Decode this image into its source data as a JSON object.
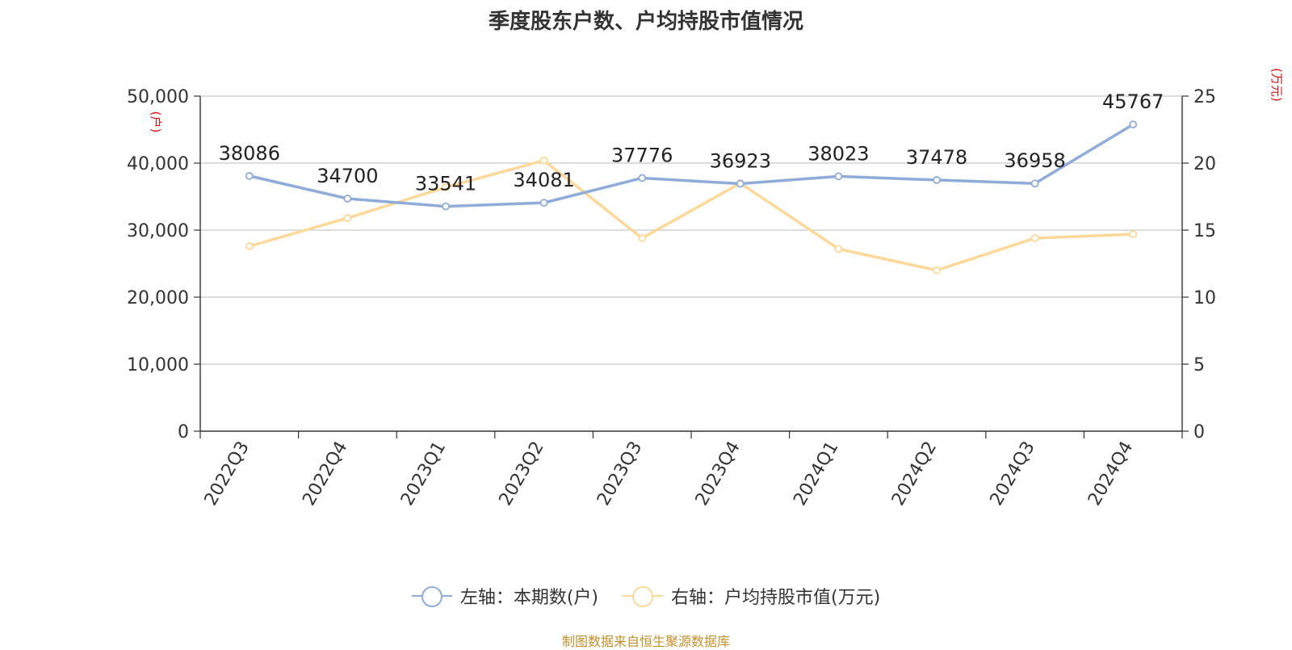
{
  "colors": {
    "series1": "#8fabd8",
    "series2": "#fdd898",
    "axis_unit": "#e01010",
    "source": "#c5902c",
    "grid": "#c8c8c8",
    "axis": "#333333"
  },
  "legend": {
    "item1": "左轴：本期数(户)",
    "item2": "右轴：户均持股市值(万元)"
  },
  "source_note": "制图数据来自恒生聚源数据库",
  "chart_data": {
    "type": "line",
    "title": "季度股东户数、户均持股市值情况",
    "categories": [
      "2022Q3",
      "2022Q4",
      "2023Q1",
      "2023Q2",
      "2023Q3",
      "2023Q4",
      "2024Q1",
      "2024Q2",
      "2024Q3",
      "2024Q4"
    ],
    "series": [
      {
        "name": "左轴：本期数(户)",
        "axis": "left",
        "values": [
          38086,
          34700,
          33541,
          34081,
          37776,
          36923,
          38023,
          37478,
          36958,
          45767
        ],
        "data_labels": [
          "38086",
          "34700",
          "33541",
          "34081",
          "37776",
          "36923",
          "38023",
          "37478",
          "36958",
          "45767"
        ]
      },
      {
        "name": "右轴：户均持股市值(万元)",
        "axis": "right",
        "values": [
          13.8,
          15.9,
          18.2,
          20.2,
          14.4,
          18.5,
          13.6,
          12.0,
          14.4,
          14.7
        ]
      }
    ],
    "y_left": {
      "unit_label": "(户)",
      "lim": [
        0,
        50000
      ],
      "ticks": [
        0,
        10000,
        20000,
        30000,
        40000,
        50000
      ],
      "tick_labels": [
        "0",
        "10,000",
        "20,000",
        "30,000",
        "40,000",
        "50,000"
      ]
    },
    "y_right": {
      "unit_label": "(万元)",
      "lim": [
        0,
        25
      ],
      "ticks": [
        0,
        5,
        10,
        15,
        20,
        25
      ],
      "tick_labels": [
        "0",
        "5",
        "10",
        "15",
        "20",
        "25"
      ]
    },
    "grid": true,
    "legend_position": "bottom-center"
  }
}
